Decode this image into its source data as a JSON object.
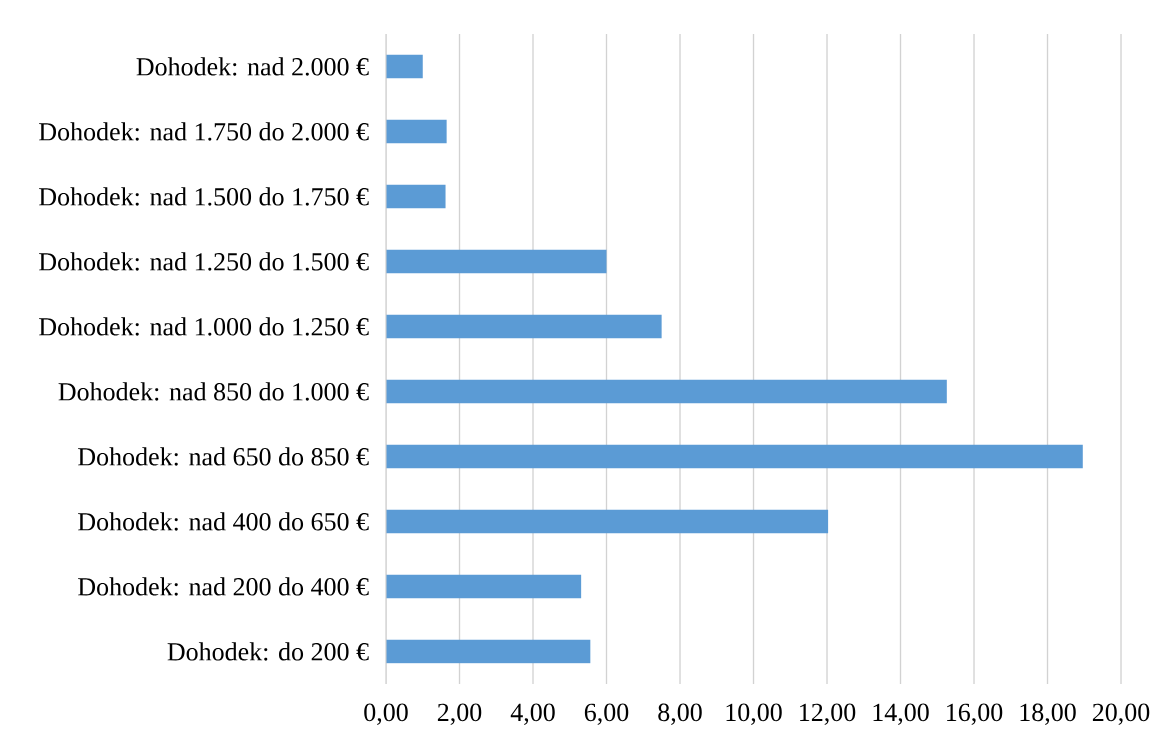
{
  "chart_data": {
    "type": "bar",
    "orientation": "horizontal",
    "categories": [
      "Dohodek: nad 2.000 €",
      "Dohodek: nad 1.750 do 2.000 €",
      "Dohodek: nad 1.500 do 1.750 €",
      "Dohodek: nad 1.250 do 1.500 €",
      "Dohodek: nad 1.000 do 1.250 €",
      "Dohodek: nad 850 do 1.000 €",
      "Dohodek: nad 650 do 850 €",
      "Dohodek: nad 400 do 650 €",
      "Dohodek: nad 200 do 400 €",
      "Dohodek: do 200 €"
    ],
    "values": [
      1.0,
      1.65,
      1.62,
      6.0,
      7.5,
      15.26,
      18.96,
      12.03,
      5.31,
      5.56
    ],
    "color": "#5b9bd5",
    "xlim": [
      0,
      20
    ],
    "xticks": [
      {
        "value": 0,
        "label": "0,00"
      },
      {
        "value": 2,
        "label": "2,00"
      },
      {
        "value": 4,
        "label": "4,00"
      },
      {
        "value": 6,
        "label": "6,00"
      },
      {
        "value": 8,
        "label": "8,00"
      },
      {
        "value": 10,
        "label": "10,00"
      },
      {
        "value": 12,
        "label": "12,00"
      },
      {
        "value": 14,
        "label": "14,00"
      },
      {
        "value": 16,
        "label": "16,00"
      },
      {
        "value": 18,
        "label": "18,00"
      },
      {
        "value": 20,
        "label": "20,00"
      }
    ],
    "grid": "x"
  }
}
